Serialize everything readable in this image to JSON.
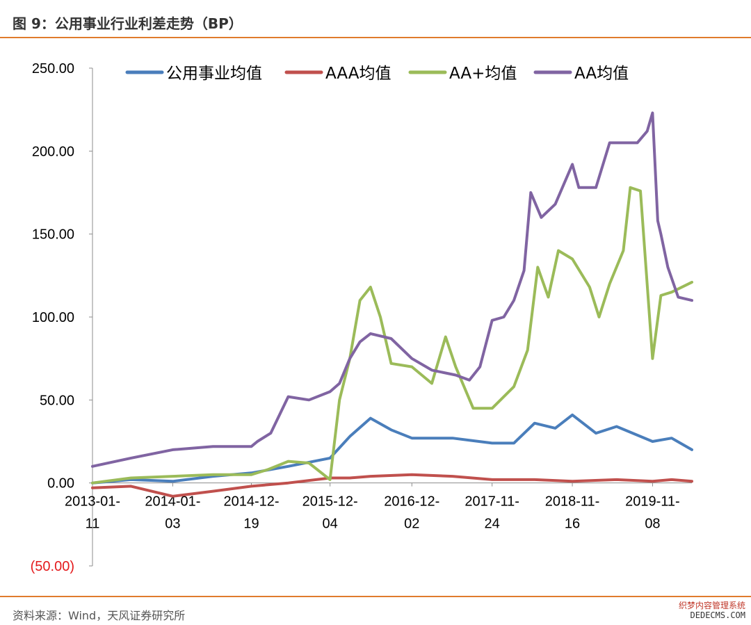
{
  "header": {
    "title": "图 9：公用事业行业利差走势（BP）"
  },
  "footer": {
    "source": "资料来源：Wind，天风证券研究所"
  },
  "watermark": {
    "line1": "织梦内容管理系统",
    "line2": "DEDECMS.COM"
  },
  "chart_data": {
    "type": "line",
    "title": "图 9：公用事业行业利差走势（BP）",
    "ylim": [
      -50,
      250
    ],
    "y_ticks": [
      250,
      200,
      150,
      100,
      50,
      0,
      -50
    ],
    "y_tick_labels": [
      "250.00",
      "200.00",
      "150.00",
      "100.00",
      "50.00",
      "0.00",
      "(50.00)"
    ],
    "x_ticks": [
      "2013-01-11",
      "2014-01-03",
      "2014-12-19",
      "2015-12-04",
      "2016-12-02",
      "2017-11-24",
      "2018-11-16",
      "2019-11-08"
    ],
    "x_tick_labels": [
      [
        "2013-01-",
        "11"
      ],
      [
        "2014-01-",
        "03"
      ],
      [
        "2014-12-",
        "19"
      ],
      [
        "2015-12-",
        "04"
      ],
      [
        "2016-12-",
        "02"
      ],
      [
        "2017-11-",
        "24"
      ],
      [
        "2018-11-",
        "16"
      ],
      [
        "2019-11-",
        "08"
      ]
    ],
    "negative_label_color": "#e41a1c",
    "legend_position": "top",
    "series": [
      {
        "name": "公用事业均值",
        "color": "#4a7ebb",
        "x": [
          "2013-01-11",
          "2013-07-01",
          "2014-01-03",
          "2014-07-01",
          "2014-12-19",
          "2015-06-01",
          "2015-12-04",
          "2016-03-01",
          "2016-06-01",
          "2016-09-01",
          "2016-12-02",
          "2017-06-01",
          "2017-11-24",
          "2018-03-01",
          "2018-06-01",
          "2018-09-01",
          "2018-11-16",
          "2019-03-01",
          "2019-06-01",
          "2019-11-08",
          "2020-02-01",
          "2020-05-01"
        ],
        "values": [
          0,
          2,
          1,
          4,
          6,
          10,
          15,
          28,
          39,
          32,
          27,
          27,
          24,
          24,
          36,
          33,
          41,
          30,
          34,
          25,
          27,
          20
        ]
      },
      {
        "name": "AAA均值",
        "color": "#c0504d",
        "x": [
          "2013-01-11",
          "2013-07-01",
          "2014-01-03",
          "2014-07-01",
          "2014-12-19",
          "2015-06-01",
          "2015-12-04",
          "2016-03-01",
          "2016-06-01",
          "2016-12-02",
          "2017-06-01",
          "2017-11-24",
          "2018-06-01",
          "2018-11-16",
          "2019-06-01",
          "2019-11-08",
          "2020-02-01",
          "2020-05-01"
        ],
        "values": [
          -3,
          -2,
          -8,
          -5,
          -2,
          0,
          3,
          3,
          4,
          5,
          4,
          2,
          2,
          1,
          2,
          1,
          2,
          1
        ]
      },
      {
        "name": "AA+均值",
        "color": "#9bbb59",
        "x": [
          "2013-01-11",
          "2013-07-01",
          "2014-01-03",
          "2014-07-01",
          "2014-12-19",
          "2015-03-01",
          "2015-06-01",
          "2015-09-01",
          "2015-12-04",
          "2016-01-15",
          "2016-03-01",
          "2016-04-15",
          "2016-06-01",
          "2016-07-15",
          "2016-09-01",
          "2016-12-02",
          "2017-03-01",
          "2017-05-01",
          "2017-06-15",
          "2017-09-01",
          "2017-11-24",
          "2018-03-01",
          "2018-05-01",
          "2018-06-15",
          "2018-08-01",
          "2018-09-15",
          "2018-11-16",
          "2019-02-01",
          "2019-03-15",
          "2019-05-01",
          "2019-07-01",
          "2019-08-01",
          "2019-09-15",
          "2019-11-08",
          "2019-12-15",
          "2020-02-01",
          "2020-05-01"
        ],
        "values": [
          0,
          3,
          4,
          5,
          5,
          8,
          13,
          12,
          2,
          50,
          75,
          110,
          118,
          100,
          72,
          70,
          60,
          88,
          70,
          45,
          45,
          58,
          80,
          130,
          112,
          140,
          135,
          118,
          100,
          120,
          140,
          178,
          176,
          75,
          113,
          115,
          121
        ]
      },
      {
        "name": "AA均值",
        "color": "#8064a2",
        "x": [
          "2013-01-11",
          "2013-07-01",
          "2014-01-03",
          "2014-07-01",
          "2014-12-19",
          "2015-01-15",
          "2015-03-15",
          "2015-06-01",
          "2015-09-01",
          "2015-12-04",
          "2016-01-15",
          "2016-03-01",
          "2016-04-15",
          "2016-06-01",
          "2016-09-01",
          "2016-12-02",
          "2017-03-01",
          "2017-06-15",
          "2017-08-15",
          "2017-10-01",
          "2017-11-24",
          "2018-01-15",
          "2018-03-01",
          "2018-04-15",
          "2018-05-15",
          "2018-07-01",
          "2018-09-01",
          "2018-11-16",
          "2018-12-15",
          "2019-03-01",
          "2019-05-01",
          "2019-07-01",
          "2019-09-01",
          "2019-10-15",
          "2019-11-08",
          "2019-12-01",
          "2019-12-15",
          "2020-01-15",
          "2020-03-01",
          "2020-05-01"
        ],
        "values": [
          10,
          15,
          20,
          22,
          22,
          25,
          30,
          52,
          50,
          55,
          60,
          75,
          85,
          90,
          87,
          75,
          68,
          65,
          62,
          70,
          98,
          100,
          110,
          128,
          175,
          160,
          168,
          192,
          178,
          178,
          205,
          205,
          205,
          212,
          223,
          158,
          150,
          130,
          112,
          110
        ]
      }
    ]
  }
}
